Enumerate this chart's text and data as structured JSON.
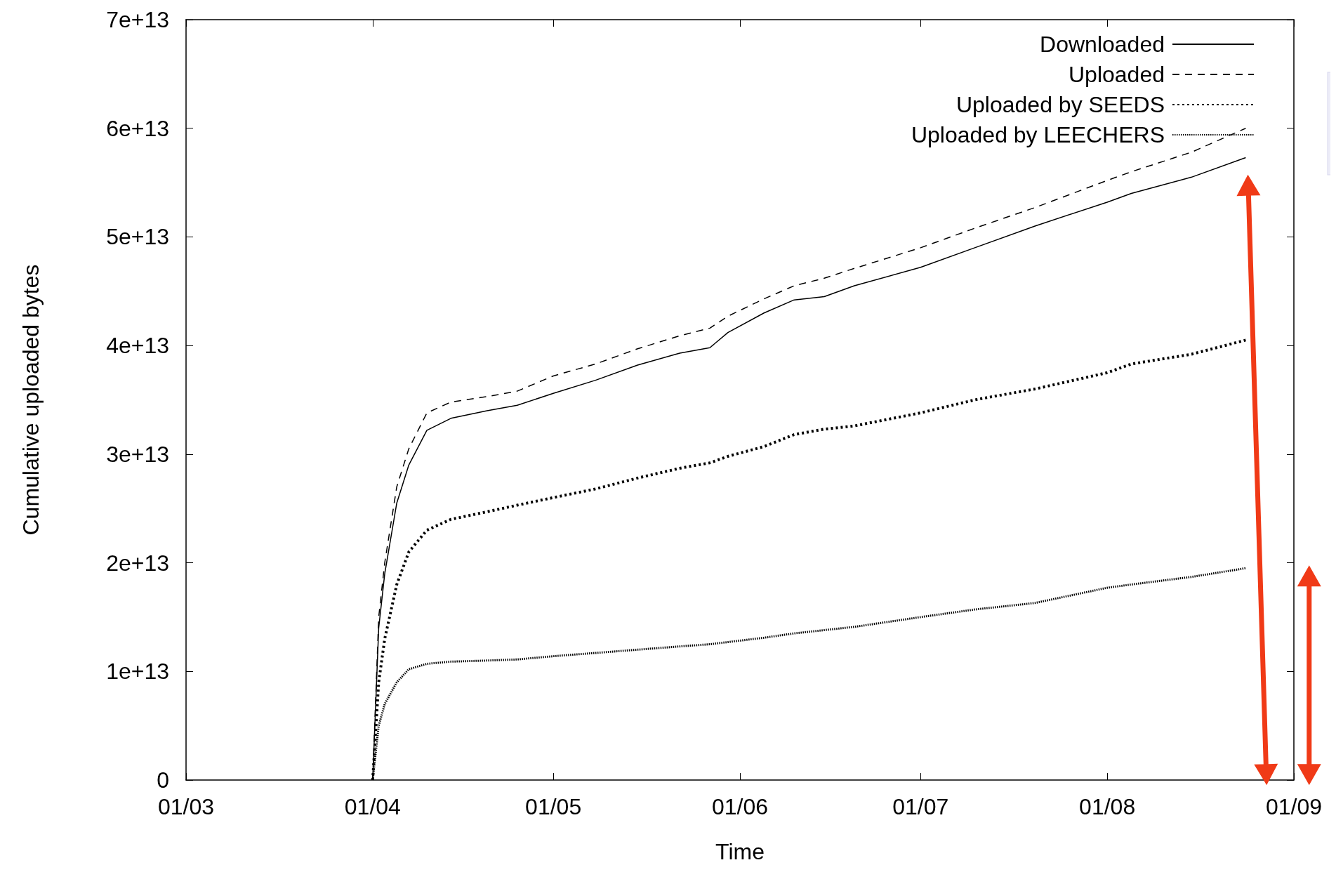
{
  "chart_data": {
    "type": "line",
    "xlabel": "Time",
    "ylabel": "Cumulative uploaded bytes",
    "x": [
      "--04-01",
      "--04-02",
      "--04-03",
      "--04-05",
      "--04-07",
      "--04-10",
      "--04-14",
      "--04-20",
      "--04-25",
      "--05-01",
      "--05-08",
      "--05-15",
      "--05-22",
      "--05-27",
      "--05-30",
      "--06-05",
      "--06-10",
      "--06-15",
      "--06-20",
      "--07-01",
      "--07-10",
      "--07-20",
      "--08-01",
      "--08-05",
      "--08-15",
      "--08-24"
    ],
    "series": [
      {
        "name": "Downloaded",
        "color": "#000000",
        "line_style": "solid",
        "values": [
          0,
          14000000000000.0,
          19000000000000.0,
          25500000000000.0,
          29000000000000.0,
          32200000000000.0,
          33300000000000.0,
          34000000000000.0,
          34500000000000.0,
          35600000000000.0,
          36800000000000.0,
          38200000000000.0,
          39300000000000.0,
          39800000000000.0,
          41200000000000.0,
          43000000000000.0,
          44200000000000.0,
          44500000000000.0,
          45500000000000.0,
          47200000000000.0,
          49000000000000.0,
          51000000000000.0,
          53200000000000.0,
          54000000000000.0,
          55500000000000.0,
          57300000000000.0
        ]
      },
      {
        "name": "Uploaded",
        "color": "#000000",
        "line_style": "dashed",
        "values": [
          0,
          15000000000000.0,
          20000000000000.0,
          27000000000000.0,
          30500000000000.0,
          33800000000000.0,
          34800000000000.0,
          35300000000000.0,
          35800000000000.0,
          37200000000000.0,
          38300000000000.0,
          39700000000000.0,
          40900000000000.0,
          41600000000000.0,
          42700000000000.0,
          44300000000000.0,
          45500000000000.0,
          46200000000000.0,
          47100000000000.0,
          49000000000000.0,
          50800000000000.0,
          52700000000000.0,
          55200000000000.0,
          56000000000000.0,
          57800000000000.0,
          60000000000000.0
        ]
      },
      {
        "name": "Uploaded by SEEDS",
        "color": "#000000",
        "line_style": "dotted",
        "values": [
          0,
          9000000000000.0,
          13000000000000.0,
          18000000000000.0,
          21000000000000.0,
          23000000000000.0,
          24000000000000.0,
          24700000000000.0,
          25300000000000.0,
          26000000000000.0,
          26800000000000.0,
          27800000000000.0,
          28700000000000.0,
          29200000000000.0,
          29800000000000.0,
          30700000000000.0,
          31800000000000.0,
          32300000000000.0,
          32600000000000.0,
          33800000000000.0,
          35000000000000.0,
          36000000000000.0,
          37500000000000.0,
          38300000000000.0,
          39200000000000.0,
          40500000000000.0
        ]
      },
      {
        "name": "Uploaded by LEECHERS",
        "color": "#000000",
        "line_style": "dotted",
        "values": [
          0,
          5000000000000.0,
          7000000000000.0,
          9000000000000.0,
          10200000000000.0,
          10700000000000.0,
          10900000000000.0,
          11000000000000.0,
          11100000000000.0,
          11400000000000.0,
          11700000000000.0,
          12000000000000.0,
          12300000000000.0,
          12500000000000.0,
          12700000000000.0,
          13100000000000.0,
          13500000000000.0,
          13800000000000.0,
          14100000000000.0,
          15000000000000.0,
          15700000000000.0,
          16300000000000.0,
          17700000000000.0,
          18000000000000.0,
          18700000000000.0,
          19500000000000.0
        ]
      }
    ],
    "xlim": [
      "--03-01",
      "--09-01"
    ],
    "xticks": [
      {
        "value": "--03-01",
        "label": "01/03"
      },
      {
        "value": "--04-01",
        "label": "01/04"
      },
      {
        "value": "--05-01",
        "label": "01/05"
      },
      {
        "value": "--06-01",
        "label": "01/06"
      },
      {
        "value": "--07-01",
        "label": "01/07"
      },
      {
        "value": "--08-01",
        "label": "01/08"
      },
      {
        "value": "--09-01",
        "label": "01/09"
      }
    ],
    "ylim": [
      0,
      70000000000000.0
    ],
    "yticks": [
      0,
      {
        "value": 10000000000000.0,
        "label": "1e+13"
      },
      {
        "value": 20000000000000.0,
        "label": "2e+13"
      },
      {
        "value": 30000000000000.0,
        "label": "3e+13"
      },
      {
        "value": 40000000000000.0,
        "label": "4e+13"
      },
      {
        "value": 50000000000000.0,
        "label": "5e+13"
      },
      {
        "value": 60000000000000.0,
        "label": "6e+13"
      },
      {
        "value": 70000000000000.0,
        "label": "7e+13"
      }
    ],
    "grid": false,
    "legend": "top right",
    "marker": "none"
  }
}
